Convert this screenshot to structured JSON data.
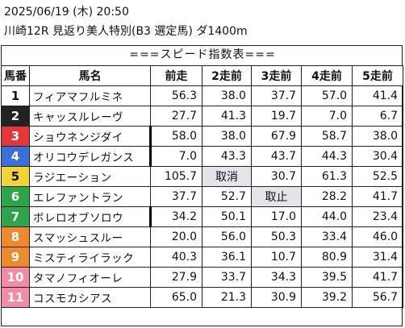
{
  "header": {
    "date_line": "2025/06/19 (木) 20:50",
    "race_line": "川崎12R 見返り美人特別(B3 選定馬) ダ1400m"
  },
  "subtitle": "===スピード指数表===",
  "columns": [
    "馬番",
    "馬名",
    "前走",
    "2走前",
    "3走前",
    "4走前",
    "5走前"
  ],
  "frame_colors": {
    "1": {
      "bg": "#ffffff",
      "fg": "#111111"
    },
    "2": {
      "bg": "#222222",
      "fg": "#ffffff"
    },
    "3": {
      "bg": "#e2383a",
      "fg": "#ffffff"
    },
    "4": {
      "bg": "#3b6fd8",
      "fg": "#ffffff"
    },
    "5": {
      "bg": "#f2d437",
      "fg": "#111111"
    },
    "6": {
      "bg": "#2fa44a",
      "fg": "#ffffff"
    },
    "7": {
      "bg": "#ee8a2e",
      "fg": "#ffffff"
    },
    "8": {
      "bg": "#f08da5",
      "fg": "#ffffff"
    }
  },
  "rows": [
    {
      "no": "1",
      "frame": 1,
      "name": "フィアマフルミネ",
      "v": [
        "56.3",
        "38.0",
        "37.7",
        "57.0",
        "41.4"
      ],
      "bar": [],
      "marks": []
    },
    {
      "no": "2",
      "frame": 2,
      "name": "キャッスルレーヴ",
      "v": [
        "27.7",
        "41.3",
        "19.7",
        "7.0",
        "6.7"
      ],
      "bar": [],
      "marks": []
    },
    {
      "no": "3",
      "frame": 3,
      "name": "ショウネンジダイ",
      "v": [
        "58.0",
        "38.0",
        "67.9",
        "58.7",
        "38.0"
      ],
      "bar": [
        1
      ],
      "marks": []
    },
    {
      "no": "4",
      "frame": 4,
      "name": "オリコウデレガンス",
      "v": [
        "7.0",
        "43.3",
        "43.7",
        "44.3",
        "30.4"
      ],
      "bar": [
        1
      ],
      "marks": []
    },
    {
      "no": "5",
      "frame": 5,
      "name": "ラジエーション",
      "v": [
        "105.7",
        "取消",
        "30.7",
        "61.3",
        "52.5"
      ],
      "bar": [],
      "marks": [
        3
      ]
    },
    {
      "no": "6",
      "frame": 6,
      "name": "エレファントラン",
      "v": [
        "37.7",
        "52.7",
        "取止",
        "28.2",
        "41.7"
      ],
      "bar": [],
      "marks": [
        4
      ]
    },
    {
      "no": "7",
      "frame": 6,
      "name": "ボレロオブソロウ",
      "v": [
        "34.2",
        "50.1",
        "17.0",
        "44.0",
        "23.4"
      ],
      "bar": [
        1
      ],
      "marks": []
    },
    {
      "no": "8",
      "frame": 7,
      "name": "スマッシュスルー",
      "v": [
        "20.0",
        "56.0",
        "50.3",
        "33.4",
        "46.0"
      ],
      "bar": [],
      "marks": []
    },
    {
      "no": "9",
      "frame": 7,
      "name": "ミスティライラック",
      "v": [
        "40.3",
        "36.1",
        "10.7",
        "80.9",
        "31.4"
      ],
      "bar": [],
      "marks": []
    },
    {
      "no": "10",
      "frame": 8,
      "name": "タマノフィオーレ",
      "v": [
        "27.9",
        "33.7",
        "34.3",
        "39.5",
        "41.7"
      ],
      "bar": [],
      "marks": []
    },
    {
      "no": "11",
      "frame": 8,
      "name": "コスモカシアス",
      "v": [
        "65.0",
        "21.3",
        "30.9",
        "39.2",
        "56.7"
      ],
      "bar": [],
      "marks": []
    }
  ]
}
